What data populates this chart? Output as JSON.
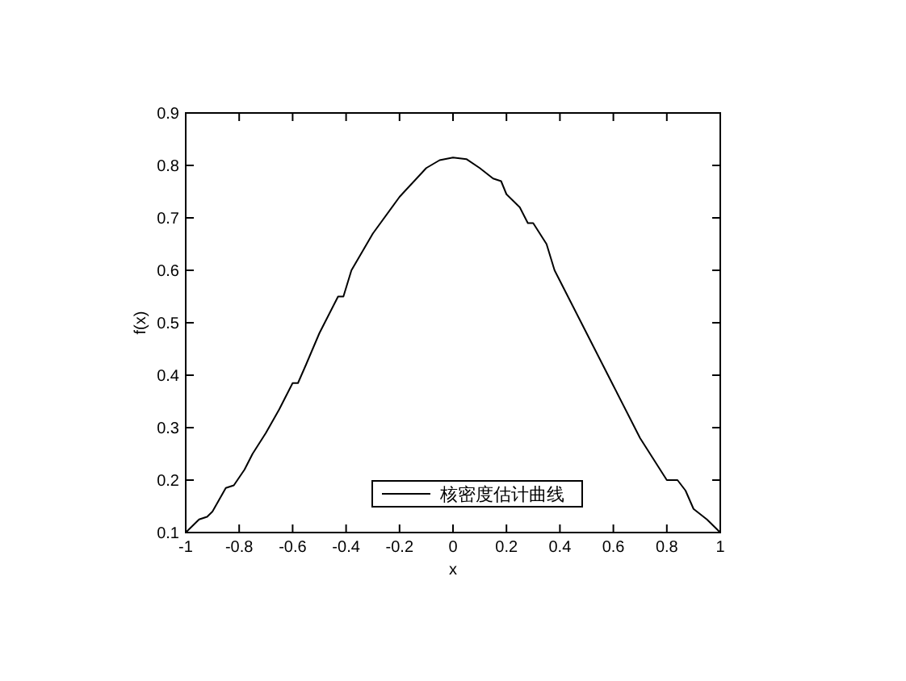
{
  "chart_data": {
    "type": "line",
    "xlabel": "x",
    "ylabel": "f(x)",
    "legend": "bottom",
    "xlim": [
      -1,
      1
    ],
    "ylim": [
      0.1,
      0.9
    ],
    "xticks": [
      -1,
      -0.8,
      -0.6,
      -0.4,
      -0.2,
      0,
      0.2,
      0.4,
      0.6,
      0.8,
      1
    ],
    "yticks": [
      0.1,
      0.2,
      0.3,
      0.4,
      0.5,
      0.6,
      0.7,
      0.8,
      0.9
    ],
    "series": [
      {
        "name": "核密度估计曲线",
        "color": "#000000",
        "x": [
          -1,
          -0.95,
          -0.92,
          -0.9,
          -0.85,
          -0.82,
          -0.78,
          -0.75,
          -0.7,
          -0.65,
          -0.6,
          -0.58,
          -0.55,
          -0.5,
          -0.45,
          -0.43,
          -0.41,
          -0.38,
          -0.3,
          -0.2,
          -0.1,
          -0.05,
          0,
          0.05,
          0.1,
          0.15,
          0.18,
          0.2,
          0.25,
          0.28,
          0.3,
          0.35,
          0.38,
          0.42,
          0.5,
          0.58,
          0.6,
          0.7,
          0.75,
          0.8,
          0.84,
          0.87,
          0.9,
          0.95,
          1
        ],
        "values": [
          0.1,
          0.125,
          0.13,
          0.14,
          0.185,
          0.19,
          0.22,
          0.25,
          0.29,
          0.335,
          0.385,
          0.385,
          0.42,
          0.48,
          0.53,
          0.55,
          0.55,
          0.6,
          0.67,
          0.74,
          0.795,
          0.81,
          0.815,
          0.812,
          0.795,
          0.775,
          0.77,
          0.745,
          0.72,
          0.69,
          0.69,
          0.65,
          0.6,
          0.56,
          0.48,
          0.4,
          0.38,
          0.28,
          0.24,
          0.2,
          0.2,
          0.18,
          0.145,
          0.125,
          0.1
        ]
      }
    ]
  }
}
